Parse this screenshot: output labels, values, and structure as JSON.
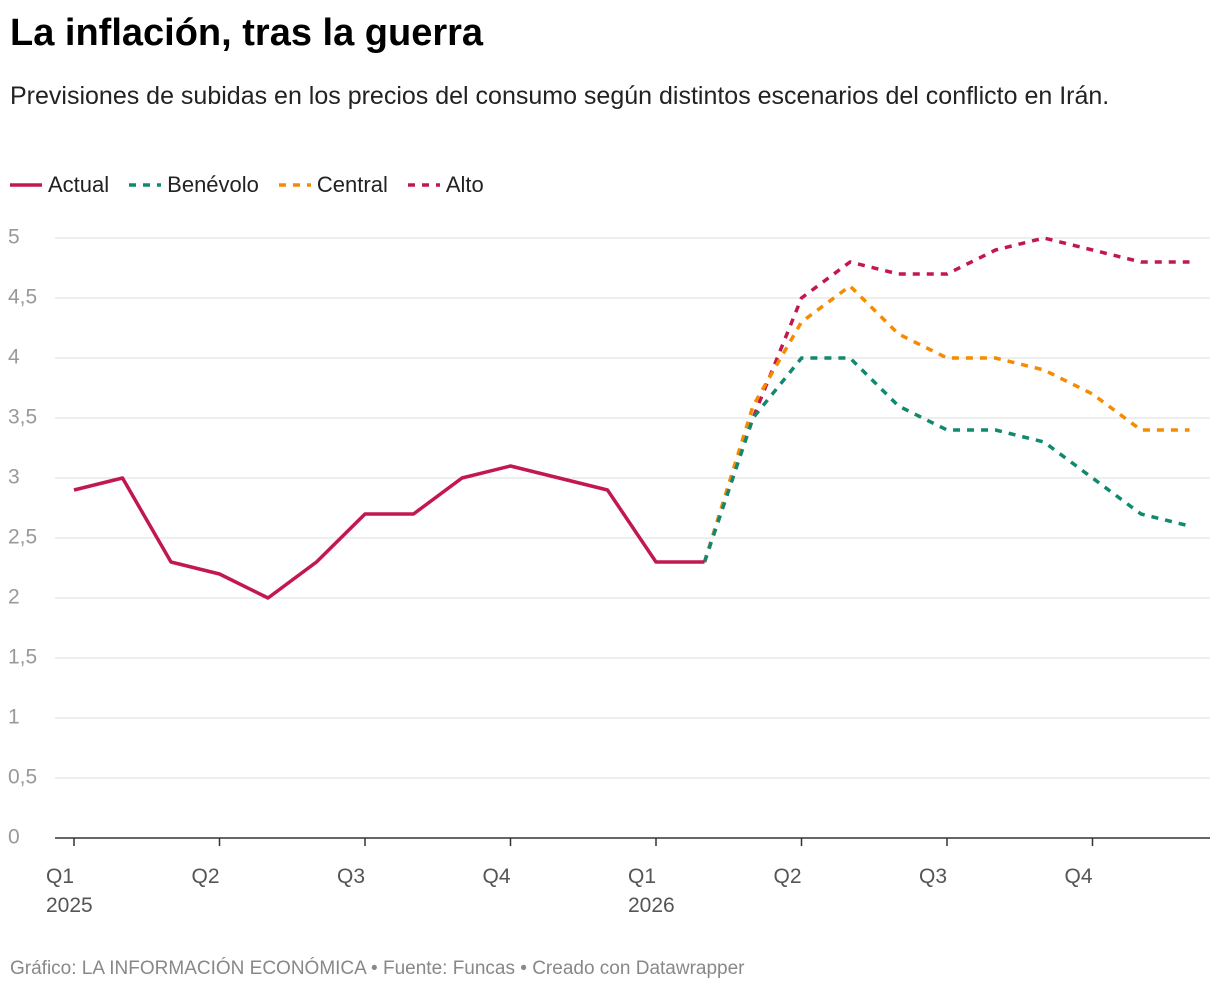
{
  "chart_data": {
    "type": "line",
    "title": "La inflación, tras la guerra",
    "subtitle": "Previsiones de subidas en los precios del consumo según distintos escenarios del conflicto en Irán.",
    "source": "Gráfico: LA INFORMACIÓN ECONÓMICA • Fuente: Funcas • Creado con Datawrapper",
    "categories": [
      "Q1 2025",
      null,
      null,
      "Q2",
      null,
      null,
      "Q3",
      null,
      null,
      "Q4",
      null,
      null,
      "Q1 2026",
      null,
      null,
      "Q2",
      null,
      null,
      "Q3",
      null,
      null,
      "Q4",
      null,
      null
    ],
    "series": [
      {
        "name": "Actual",
        "color": "#c2184f",
        "style": "solid",
        "values": [
          2.9,
          3.0,
          2.3,
          2.2,
          2.0,
          2.3,
          2.7,
          2.7,
          3.0,
          3.1,
          3.0,
          2.9,
          2.3,
          2.3,
          null,
          null,
          null,
          null,
          null,
          null,
          null,
          null,
          null,
          null
        ]
      },
      {
        "name": "Benévolo",
        "color": "#108a6f",
        "style": "dashed",
        "values": [
          null,
          null,
          null,
          null,
          null,
          null,
          null,
          null,
          null,
          null,
          null,
          null,
          null,
          2.3,
          3.5,
          4.0,
          4.0,
          3.6,
          3.4,
          3.4,
          3.3,
          3.0,
          2.7,
          2.6
        ]
      },
      {
        "name": "Central",
        "color": "#f58b00",
        "style": "dashed",
        "values": [
          null,
          null,
          null,
          null,
          null,
          null,
          null,
          null,
          null,
          null,
          null,
          null,
          null,
          2.3,
          3.6,
          4.3,
          4.6,
          4.2,
          4.0,
          4.0,
          3.9,
          3.7,
          3.4,
          3.4
        ]
      },
      {
        "name": "Alto",
        "color": "#c2184f",
        "style": "dashed",
        "values": [
          null,
          null,
          null,
          null,
          null,
          null,
          null,
          null,
          null,
          null,
          null,
          null,
          null,
          2.3,
          3.5,
          4.5,
          4.8,
          4.7,
          4.7,
          4.9,
          5.0,
          4.9,
          4.8,
          4.8
        ]
      }
    ],
    "ylim": [
      0,
      5
    ],
    "yticks": [
      0,
      {
        "value": 0.5,
        "label": "0,5"
      },
      1,
      {
        "value": 1.5,
        "label": "1,5"
      },
      2,
      {
        "value": 2.5,
        "label": "2,5"
      },
      3,
      {
        "value": 3.5,
        "label": "3,5"
      },
      4,
      {
        "value": 4.5,
        "label": "4,5"
      },
      5
    ],
    "grid": true
  }
}
